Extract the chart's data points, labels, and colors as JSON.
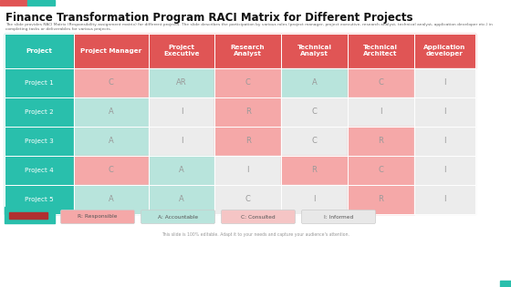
{
  "title": "Finance Transformation Program RACI Matrix for Different Projects",
  "subtitle": "The slide provides RACI Matrix (Responsibility assignment matrix) for different projects. The slide describes the participation by various roles (project manager, project executive, research analyst, technical analyst, application developer etc.) in completing tasks or deliverables for various projects.",
  "footer": "This slide is 100% editable. Adapt it to your needs and capture your audience's attention.",
  "columns": [
    "Project",
    "Project Manager",
    "Project\nExecutive",
    "Research\nAnalyst",
    "Technical\nAnalyst",
    "Technical\nArchitect",
    "Application\ndeveloper"
  ],
  "rows": [
    "Project 1",
    "Project 2",
    "Project 3",
    "Project 4",
    "Project 5"
  ],
  "data": [
    [
      "C",
      "AR",
      "C",
      "A",
      "C",
      "I"
    ],
    [
      "A",
      "I",
      "R",
      "C",
      "I",
      "I"
    ],
    [
      "A",
      "I",
      "R",
      "C",
      "R",
      "I"
    ],
    [
      "C",
      "A",
      "I",
      "R",
      "C",
      "I"
    ],
    [
      "A",
      "A",
      "C",
      "I",
      "R",
      "I"
    ]
  ],
  "cell_colors": [
    [
      "#f5a8a8",
      "#b8e4dc",
      "#f5a8a8",
      "#b8e4dc",
      "#f5a8a8",
      "#ececec"
    ],
    [
      "#b8e4dc",
      "#ececec",
      "#f5a8a8",
      "#ececec",
      "#ececec",
      "#ececec"
    ],
    [
      "#b8e4dc",
      "#ececec",
      "#f5a8a8",
      "#ececec",
      "#f5a8a8",
      "#ececec"
    ],
    [
      "#f5a8a8",
      "#b8e4dc",
      "#ececec",
      "#f5a8a8",
      "#f5a8a8",
      "#ececec"
    ],
    [
      "#b8e4dc",
      "#b8e4dc",
      "#ececec",
      "#ececec",
      "#f5a8a8",
      "#ececec"
    ]
  ],
  "header_bg": "#e05555",
  "row_header_bg": "#29bfac",
  "accent_color": "#29bfac",
  "title_color": "#111111",
  "header_text_color": "#ffffff",
  "row_header_text_color": "#ffffff",
  "cell_text_color": "#999999",
  "bg_color": "#ffffff",
  "legend_items": [
    {
      "label": "R: Responsible",
      "color": "#f5a8a8"
    },
    {
      "label": "A: Accountable",
      "color": "#b8e4dc"
    },
    {
      "label": "C: Consulted",
      "color": "#f5c5c5"
    },
    {
      "label": "I: Informed",
      "color": "#e8e8e8"
    }
  ],
  "red_bar_color": "#b03030",
  "top_bar_left_color": "#e05555",
  "top_bar_right_color": "#29bfac"
}
